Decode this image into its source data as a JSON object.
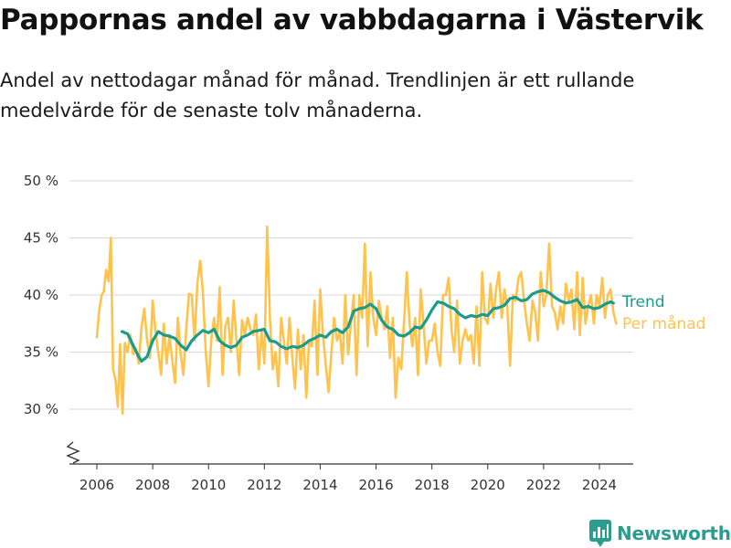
{
  "title": "Pappornas andel av vabbdagarna i Västervik",
  "subtitle": "Andel av nettodagar månad för månad. Trendlinjen är ett rullande medelvärde för de senaste tolv månaderna.",
  "brand": {
    "name": "Newsworthy",
    "icon": "newsworthy-logo-icon"
  },
  "colors": {
    "trend": "#1a9b8b",
    "monthly": "#ffc34d",
    "grid": "#d9d9d9"
  },
  "chart_data": {
    "type": "line",
    "xlabel": "",
    "ylabel": "",
    "ylim": [
      25,
      50
    ],
    "xlim": [
      2005.8,
      2024.6
    ],
    "y_axis_break": true,
    "grid": "horizontal",
    "legend_position": "right",
    "y_ticks": [
      30,
      35,
      40,
      45,
      50
    ],
    "y_tick_labels": [
      "30 %",
      "35 %",
      "40 %",
      "45 %",
      "50 %"
    ],
    "x_ticks": [
      2006,
      2008,
      2010,
      2012,
      2014,
      2016,
      2018,
      2020,
      2022,
      2024
    ],
    "x_tick_labels": [
      "2006",
      "2008",
      "2010",
      "2012",
      "2014",
      "2016",
      "2018",
      "2020",
      "2022",
      "2024"
    ],
    "series": [
      {
        "name": "Trend",
        "color": "#1a9b8b",
        "points": [
          [
            2006.9,
            36.8
          ],
          [
            2007.1,
            36.6
          ],
          [
            2007.3,
            35.6
          ],
          [
            2007.5,
            34.6
          ],
          [
            2007.6,
            34.2
          ],
          [
            2007.8,
            34.6
          ],
          [
            2008.0,
            36.0
          ],
          [
            2008.2,
            36.8
          ],
          [
            2008.4,
            36.5
          ],
          [
            2008.6,
            36.4
          ],
          [
            2008.8,
            36.2
          ],
          [
            2009.0,
            35.6
          ],
          [
            2009.2,
            35.2
          ],
          [
            2009.4,
            36.0
          ],
          [
            2009.6,
            36.5
          ],
          [
            2009.8,
            36.9
          ],
          [
            2010.0,
            36.7
          ],
          [
            2010.2,
            37.0
          ],
          [
            2010.4,
            36.0
          ],
          [
            2010.6,
            35.6
          ],
          [
            2010.8,
            35.4
          ],
          [
            2011.0,
            35.6
          ],
          [
            2011.2,
            36.3
          ],
          [
            2011.4,
            36.5
          ],
          [
            2011.6,
            36.8
          ],
          [
            2011.8,
            36.9
          ],
          [
            2012.0,
            37.0
          ],
          [
            2012.2,
            36.0
          ],
          [
            2012.4,
            35.9
          ],
          [
            2012.6,
            35.5
          ],
          [
            2012.8,
            35.3
          ],
          [
            2013.0,
            35.5
          ],
          [
            2013.2,
            35.4
          ],
          [
            2013.4,
            35.6
          ],
          [
            2013.6,
            36.0
          ],
          [
            2013.8,
            36.2
          ],
          [
            2014.0,
            36.5
          ],
          [
            2014.2,
            36.3
          ],
          [
            2014.4,
            36.8
          ],
          [
            2014.6,
            37.0
          ],
          [
            2014.8,
            36.7
          ],
          [
            2015.0,
            37.2
          ],
          [
            2015.2,
            38.6
          ],
          [
            2015.4,
            38.8
          ],
          [
            2015.6,
            38.9
          ],
          [
            2015.8,
            39.2
          ],
          [
            2016.0,
            38.8
          ],
          [
            2016.2,
            37.8
          ],
          [
            2016.4,
            37.2
          ],
          [
            2016.6,
            37.0
          ],
          [
            2016.8,
            36.5
          ],
          [
            2017.0,
            36.4
          ],
          [
            2017.2,
            36.7
          ],
          [
            2017.4,
            37.2
          ],
          [
            2017.6,
            37.1
          ],
          [
            2017.8,
            37.8
          ],
          [
            2018.0,
            38.7
          ],
          [
            2018.2,
            39.4
          ],
          [
            2018.4,
            39.3
          ],
          [
            2018.6,
            39.0
          ],
          [
            2018.8,
            38.8
          ],
          [
            2019.0,
            38.3
          ],
          [
            2019.2,
            38.0
          ],
          [
            2019.4,
            38.2
          ],
          [
            2019.6,
            38.1
          ],
          [
            2019.8,
            38.3
          ],
          [
            2020.0,
            38.2
          ],
          [
            2020.2,
            38.8
          ],
          [
            2020.4,
            38.9
          ],
          [
            2020.6,
            39.1
          ],
          [
            2020.8,
            39.7
          ],
          [
            2021.0,
            39.8
          ],
          [
            2021.2,
            39.5
          ],
          [
            2021.4,
            39.6
          ],
          [
            2021.6,
            40.1
          ],
          [
            2021.8,
            40.3
          ],
          [
            2022.0,
            40.4
          ],
          [
            2022.2,
            40.2
          ],
          [
            2022.4,
            39.8
          ],
          [
            2022.6,
            39.5
          ],
          [
            2022.8,
            39.3
          ],
          [
            2023.0,
            39.4
          ],
          [
            2023.2,
            39.6
          ],
          [
            2023.4,
            38.9
          ],
          [
            2023.6,
            39.0
          ],
          [
            2023.8,
            38.8
          ],
          [
            2024.0,
            38.9
          ],
          [
            2024.2,
            39.2
          ],
          [
            2024.4,
            39.4
          ],
          [
            2024.5,
            39.3
          ]
        ]
      },
      {
        "name": "Per månad",
        "color": "#ffc34d",
        "points": [
          [
            2006.0,
            36.3
          ],
          [
            2006.08,
            38.5
          ],
          [
            2006.17,
            40.0
          ],
          [
            2006.25,
            40.3
          ],
          [
            2006.33,
            42.2
          ],
          [
            2006.42,
            41.2
          ],
          [
            2006.5,
            45.0
          ],
          [
            2006.58,
            33.5
          ],
          [
            2006.67,
            32.5
          ],
          [
            2006.75,
            30.2
          ],
          [
            2006.83,
            35.7
          ],
          [
            2006.92,
            29.6
          ],
          [
            2007.0,
            35.8
          ],
          [
            2007.1,
            35.0
          ],
          [
            2007.2,
            36.5
          ],
          [
            2007.3,
            34.8
          ],
          [
            2007.4,
            35.3
          ],
          [
            2007.5,
            34.0
          ],
          [
            2007.6,
            37.2
          ],
          [
            2007.7,
            38.8
          ],
          [
            2007.8,
            36.0
          ],
          [
            2007.9,
            34.5
          ],
          [
            2008.0,
            39.5
          ],
          [
            2008.1,
            36.8
          ],
          [
            2008.2,
            35.0
          ],
          [
            2008.3,
            33.0
          ],
          [
            2008.4,
            37.5
          ],
          [
            2008.5,
            34.0
          ],
          [
            2008.6,
            36.5
          ],
          [
            2008.7,
            34.3
          ],
          [
            2008.8,
            32.3
          ],
          [
            2008.9,
            38.0
          ],
          [
            2009.0,
            34.8
          ],
          [
            2009.1,
            33.0
          ],
          [
            2009.2,
            37.0
          ],
          [
            2009.3,
            40.1
          ],
          [
            2009.4,
            40.0
          ],
          [
            2009.5,
            36.0
          ],
          [
            2009.6,
            41.0
          ],
          [
            2009.7,
            43.0
          ],
          [
            2009.8,
            40.2
          ],
          [
            2009.9,
            35.0
          ],
          [
            2010.0,
            32.0
          ],
          [
            2010.1,
            36.2
          ],
          [
            2010.2,
            38.0
          ],
          [
            2010.3,
            36.0
          ],
          [
            2010.4,
            40.7
          ],
          [
            2010.5,
            33.0
          ],
          [
            2010.6,
            37.3
          ],
          [
            2010.7,
            38.0
          ],
          [
            2010.8,
            35.0
          ],
          [
            2010.9,
            39.5
          ],
          [
            2011.0,
            36.0
          ],
          [
            2011.1,
            33.0
          ],
          [
            2011.2,
            37.8
          ],
          [
            2011.3,
            36.5
          ],
          [
            2011.4,
            38.0
          ],
          [
            2011.5,
            37.0
          ],
          [
            2011.6,
            36.5
          ],
          [
            2011.7,
            38.3
          ],
          [
            2011.8,
            33.5
          ],
          [
            2011.9,
            36.8
          ],
          [
            2012.0,
            34.0
          ],
          [
            2012.1,
            46.0
          ],
          [
            2012.2,
            38.0
          ],
          [
            2012.3,
            33.5
          ],
          [
            2012.4,
            35.0
          ],
          [
            2012.5,
            32.0
          ],
          [
            2012.6,
            38.0
          ],
          [
            2012.7,
            36.0
          ],
          [
            2012.8,
            34.0
          ],
          [
            2012.9,
            38.0
          ],
          [
            2013.0,
            34.5
          ],
          [
            2013.1,
            31.8
          ],
          [
            2013.2,
            37.0
          ],
          [
            2013.3,
            33.5
          ],
          [
            2013.4,
            36.5
          ],
          [
            2013.5,
            31.0
          ],
          [
            2013.6,
            36.0
          ],
          [
            2013.7,
            35.5
          ],
          [
            2013.8,
            39.5
          ],
          [
            2013.9,
            33.0
          ],
          [
            2014.0,
            40.5
          ],
          [
            2014.1,
            36.5
          ],
          [
            2014.2,
            33.8
          ],
          [
            2014.3,
            31.5
          ],
          [
            2014.4,
            35.0
          ],
          [
            2014.5,
            38.0
          ],
          [
            2014.6,
            36.0
          ],
          [
            2014.7,
            36.8
          ],
          [
            2014.8,
            34.0
          ],
          [
            2014.9,
            40.0
          ],
          [
            2015.0,
            34.8
          ],
          [
            2015.1,
            37.5
          ],
          [
            2015.2,
            40.0
          ],
          [
            2015.3,
            33.0
          ],
          [
            2015.4,
            40.0
          ],
          [
            2015.5,
            38.0
          ],
          [
            2015.6,
            44.5
          ],
          [
            2015.7,
            35.5
          ],
          [
            2015.8,
            42.0
          ],
          [
            2015.9,
            38.0
          ],
          [
            2016.0,
            36.5
          ],
          [
            2016.1,
            39.5
          ],
          [
            2016.2,
            38.0
          ],
          [
            2016.3,
            37.0
          ],
          [
            2016.4,
            39.0
          ],
          [
            2016.5,
            34.5
          ],
          [
            2016.6,
            38.0
          ],
          [
            2016.7,
            31.0
          ],
          [
            2016.8,
            34.5
          ],
          [
            2016.9,
            33.5
          ],
          [
            2017.0,
            37.5
          ],
          [
            2017.1,
            42.0
          ],
          [
            2017.2,
            37.5
          ],
          [
            2017.3,
            35.5
          ],
          [
            2017.4,
            38.0
          ],
          [
            2017.5,
            33.0
          ],
          [
            2017.6,
            40.5
          ],
          [
            2017.7,
            37.5
          ],
          [
            2017.8,
            34.0
          ],
          [
            2017.9,
            36.0
          ],
          [
            2018.0,
            36.0
          ],
          [
            2018.1,
            37.5
          ],
          [
            2018.2,
            35.0
          ],
          [
            2018.3,
            33.8
          ],
          [
            2018.4,
            40.0
          ],
          [
            2018.5,
            40.0
          ],
          [
            2018.6,
            41.5
          ],
          [
            2018.7,
            37.0
          ],
          [
            2018.8,
            35.0
          ],
          [
            2018.9,
            39.5
          ],
          [
            2019.0,
            34.0
          ],
          [
            2019.1,
            36.0
          ],
          [
            2019.2,
            37.0
          ],
          [
            2019.3,
            36.0
          ],
          [
            2019.4,
            36.5
          ],
          [
            2019.5,
            34.0
          ],
          [
            2019.6,
            39.0
          ],
          [
            2019.7,
            33.8
          ],
          [
            2019.8,
            42.0
          ],
          [
            2019.9,
            38.0
          ],
          [
            2020.0,
            37.5
          ],
          [
            2020.1,
            41.0
          ],
          [
            2020.2,
            38.0
          ],
          [
            2020.3,
            40.5
          ],
          [
            2020.4,
            42.0
          ],
          [
            2020.5,
            38.0
          ],
          [
            2020.6,
            40.5
          ],
          [
            2020.7,
            39.0
          ],
          [
            2020.8,
            33.8
          ],
          [
            2020.9,
            40.0
          ],
          [
            2021.0,
            39.5
          ],
          [
            2021.1,
            41.5
          ],
          [
            2021.2,
            42.0
          ],
          [
            2021.3,
            39.5
          ],
          [
            2021.4,
            37.5
          ],
          [
            2021.5,
            36.0
          ],
          [
            2021.6,
            39.5
          ],
          [
            2021.7,
            38.5
          ],
          [
            2021.8,
            36.0
          ],
          [
            2021.9,
            42.0
          ],
          [
            2022.0,
            39.0
          ],
          [
            2022.1,
            40.0
          ],
          [
            2022.2,
            44.5
          ],
          [
            2022.3,
            39.0
          ],
          [
            2022.4,
            38.5
          ],
          [
            2022.5,
            37.0
          ],
          [
            2022.6,
            39.0
          ],
          [
            2022.7,
            37.5
          ],
          [
            2022.8,
            41.0
          ],
          [
            2022.9,
            39.5
          ],
          [
            2023.0,
            40.5
          ],
          [
            2023.1,
            37.0
          ],
          [
            2023.2,
            42.0
          ],
          [
            2023.3,
            36.5
          ],
          [
            2023.4,
            41.5
          ],
          [
            2023.5,
            37.5
          ],
          [
            2023.6,
            39.0
          ],
          [
            2023.7,
            40.0
          ],
          [
            2023.8,
            37.5
          ],
          [
            2023.9,
            40.0
          ],
          [
            2024.0,
            39.0
          ],
          [
            2024.1,
            41.5
          ],
          [
            2024.2,
            38.0
          ],
          [
            2024.3,
            40.0
          ],
          [
            2024.4,
            40.5
          ],
          [
            2024.5,
            38.5
          ],
          [
            2024.55,
            38.0
          ],
          [
            2024.6,
            37.5
          ]
        ]
      }
    ]
  }
}
